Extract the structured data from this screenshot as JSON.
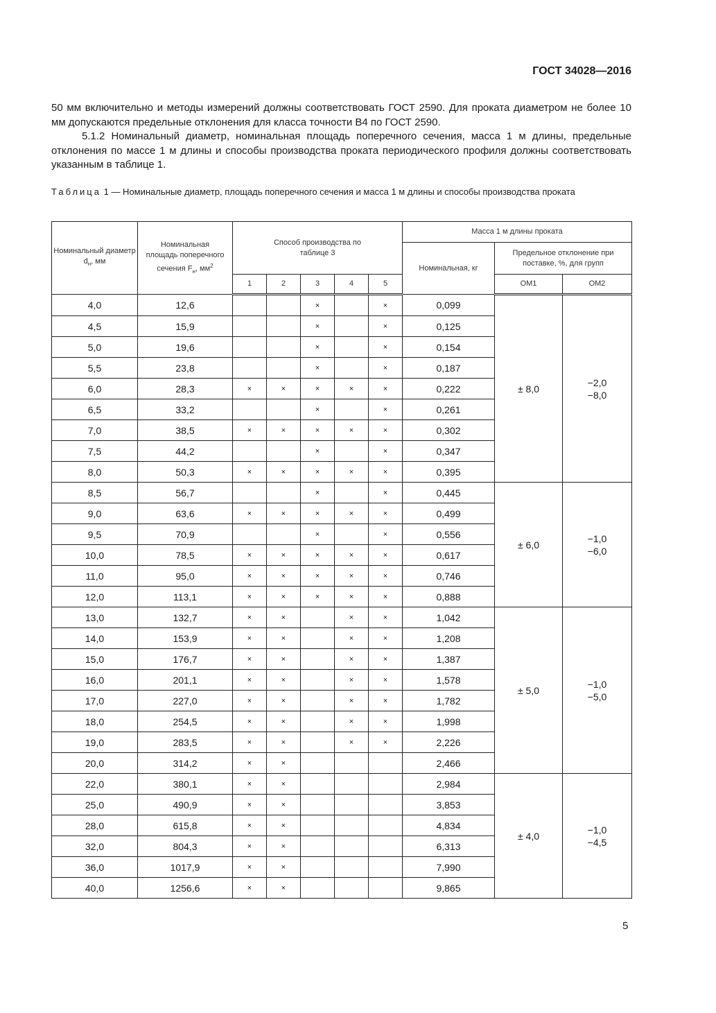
{
  "header": {
    "standard": "ГОСТ 34028—2016"
  },
  "paragraphs": [
    "50 мм включительно и методы измерений должны соответствовать ГОСТ 2590. Для проката диаметром не более 10 мм допускаются предельные отклонения для класса точности В4 по ГОСТ 2590.",
    "5.1.2 Номинальный диаметр, номинальная площадь поперечного сечения, масса 1 м длины, предельные отклонения по массе 1 м длины и способы производства проката периодического профиля должны соответствовать указанным в таблице 1."
  ],
  "table": {
    "caption_label": "Таблица",
    "caption_text": " 1 — Номинальные диаметр, площадь поперечного сечения и масса 1 м длины и способы производства проката",
    "headers": {
      "diameter": "Номинальный диаметр d",
      "diameter_sub": "н",
      "diameter_unit": ", мм",
      "area": "Номинальная площадь поперечного сечения F",
      "area_sub": "н",
      "area_unit": ", мм",
      "area_sup": "2",
      "method": "Способ производства по таблице 3",
      "method_cols": [
        "1",
        "2",
        "3",
        "4",
        "5"
      ],
      "mass": "Масса 1 м длины проката",
      "mass_nominal": "Номинальная, кг",
      "mass_deviation": "Предельное отклонение при поставке, %, для групп",
      "group_om1": "ОМ1",
      "group_om2": "ОМ2"
    },
    "mark_symbol": "×",
    "rows": [
      {
        "d": "4,0",
        "f": "12,6",
        "m": [
          0,
          0,
          1,
          0,
          1
        ],
        "mass": "0,099"
      },
      {
        "d": "4,5",
        "f": "15,9",
        "m": [
          0,
          0,
          1,
          0,
          1
        ],
        "mass": "0,125"
      },
      {
        "d": "5,0",
        "f": "19,6",
        "m": [
          0,
          0,
          1,
          0,
          1
        ],
        "mass": "0,154"
      },
      {
        "d": "5,5",
        "f": "23,8",
        "m": [
          0,
          0,
          1,
          0,
          1
        ],
        "mass": "0,187"
      },
      {
        "d": "6,0",
        "f": "28,3",
        "m": [
          1,
          1,
          1,
          1,
          1
        ],
        "mass": "0,222"
      },
      {
        "d": "6,5",
        "f": "33,2",
        "m": [
          0,
          0,
          1,
          0,
          1
        ],
        "mass": "0,261"
      },
      {
        "d": "7,0",
        "f": "38,5",
        "m": [
          1,
          1,
          1,
          1,
          1
        ],
        "mass": "0,302"
      },
      {
        "d": "7,5",
        "f": "44,2",
        "m": [
          0,
          0,
          1,
          0,
          1
        ],
        "mass": "0,347"
      },
      {
        "d": "8,0",
        "f": "50,3",
        "m": [
          1,
          1,
          1,
          1,
          1
        ],
        "mass": "0,395"
      },
      {
        "d": "8,5",
        "f": "56,7",
        "m": [
          0,
          0,
          1,
          0,
          1
        ],
        "mass": "0,445"
      },
      {
        "d": "9,0",
        "f": "63,6",
        "m": [
          1,
          1,
          1,
          1,
          1
        ],
        "mass": "0,499"
      },
      {
        "d": "9,5",
        "f": "70,9",
        "m": [
          0,
          0,
          1,
          0,
          1
        ],
        "mass": "0,556"
      },
      {
        "d": "10,0",
        "f": "78,5",
        "m": [
          1,
          1,
          1,
          1,
          1
        ],
        "mass": "0,617"
      },
      {
        "d": "11,0",
        "f": "95,0",
        "m": [
          1,
          1,
          1,
          1,
          1
        ],
        "mass": "0,746"
      },
      {
        "d": "12,0",
        "f": "113,1",
        "m": [
          1,
          1,
          1,
          1,
          1
        ],
        "mass": "0,888"
      },
      {
        "d": "13,0",
        "f": "132,7",
        "m": [
          1,
          1,
          0,
          1,
          1
        ],
        "mass": "1,042"
      },
      {
        "d": "14,0",
        "f": "153,9",
        "m": [
          1,
          1,
          0,
          1,
          1
        ],
        "mass": "1,208"
      },
      {
        "d": "15,0",
        "f": "176,7",
        "m": [
          1,
          1,
          0,
          1,
          1
        ],
        "mass": "1,387"
      },
      {
        "d": "16,0",
        "f": "201,1",
        "m": [
          1,
          1,
          0,
          1,
          1
        ],
        "mass": "1,578"
      },
      {
        "d": "17,0",
        "f": "227,0",
        "m": [
          1,
          1,
          0,
          1,
          1
        ],
        "mass": "1,782"
      },
      {
        "d": "18,0",
        "f": "254,5",
        "m": [
          1,
          1,
          0,
          1,
          1
        ],
        "mass": "1,998"
      },
      {
        "d": "19,0",
        "f": "283,5",
        "m": [
          1,
          1,
          0,
          1,
          1
        ],
        "mass": "2,226"
      },
      {
        "d": "20,0",
        "f": "314,2",
        "m": [
          1,
          1,
          0,
          0,
          0
        ],
        "mass": "2,466"
      },
      {
        "d": "22,0",
        "f": "380,1",
        "m": [
          1,
          1,
          0,
          0,
          0
        ],
        "mass": "2,984"
      },
      {
        "d": "25,0",
        "f": "490,9",
        "m": [
          1,
          1,
          0,
          0,
          0
        ],
        "mass": "3,853"
      },
      {
        "d": "28,0",
        "f": "615,8",
        "m": [
          1,
          1,
          0,
          0,
          0
        ],
        "mass": "4,834"
      },
      {
        "d": "32,0",
        "f": "804,3",
        "m": [
          1,
          1,
          0,
          0,
          0
        ],
        "mass": "6,313"
      },
      {
        "d": "36,0",
        "f": "1017,9",
        "m": [
          1,
          1,
          0,
          0,
          0
        ],
        "mass": "7,990"
      },
      {
        "d": "40,0",
        "f": "1256,6",
        "m": [
          1,
          1,
          0,
          0,
          0
        ],
        "mass": "9,865"
      }
    ],
    "deviation_groups": [
      {
        "rows": 9,
        "om1": "± 8,0",
        "om2": "−2,0\n−8,0"
      },
      {
        "rows": 6,
        "om1": "± 6,0",
        "om2": "−1,0\n−6,0"
      },
      {
        "rows": 8,
        "om1": "± 5,0",
        "om2": "−1,0\n−5,0"
      },
      {
        "rows": 6,
        "om1": "± 4,0",
        "om2": "−1,0\n−4,5"
      }
    ]
  },
  "footer": {
    "page_number": "5"
  }
}
